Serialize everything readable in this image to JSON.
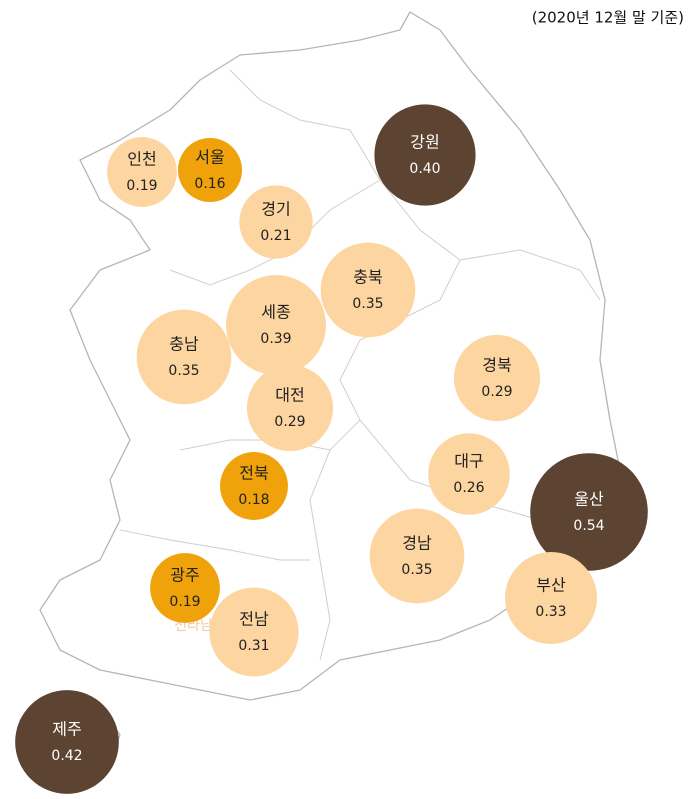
{
  "note": "(2020년 12월 말 기준)",
  "map_label": "전라남도",
  "regions": [
    {
      "name": "인천",
      "value": 0.19,
      "color": "#fdd5a0"
    },
    {
      "name": "서울",
      "value": 0.16,
      "color": "#f0a20a"
    },
    {
      "name": "경기",
      "value": 0.21,
      "color": "#fdd5a0"
    },
    {
      "name": "강원",
      "value": 0.4,
      "value_label": "0.40",
      "color": "#5c4332"
    },
    {
      "name": "충북",
      "value": 0.35,
      "color": "#fdd5a0"
    },
    {
      "name": "세종",
      "value": 0.39,
      "color": "#fdd5a0"
    },
    {
      "name": "충남",
      "value": 0.35,
      "color": "#fdd5a0"
    },
    {
      "name": "대전",
      "value": 0.29,
      "color": "#fdd5a0"
    },
    {
      "name": "경북",
      "value": 0.29,
      "color": "#fdd5a0"
    },
    {
      "name": "대구",
      "value": 0.26,
      "color": "#fdd5a0"
    },
    {
      "name": "울산",
      "value": 0.54,
      "color": "#5c4332"
    },
    {
      "name": "전북",
      "value": 0.18,
      "color": "#f0a20a"
    },
    {
      "name": "경남",
      "value": 0.35,
      "color": "#fdd5a0"
    },
    {
      "name": "부산",
      "value": 0.33,
      "color": "#fdd5a0"
    },
    {
      "name": "광주",
      "value": 0.19,
      "color": "#f0a20a"
    },
    {
      "name": "전남",
      "value": 0.31,
      "color": "#fdd5a0"
    },
    {
      "name": "제주",
      "value": 0.42,
      "color": "#5c4332"
    }
  ]
}
